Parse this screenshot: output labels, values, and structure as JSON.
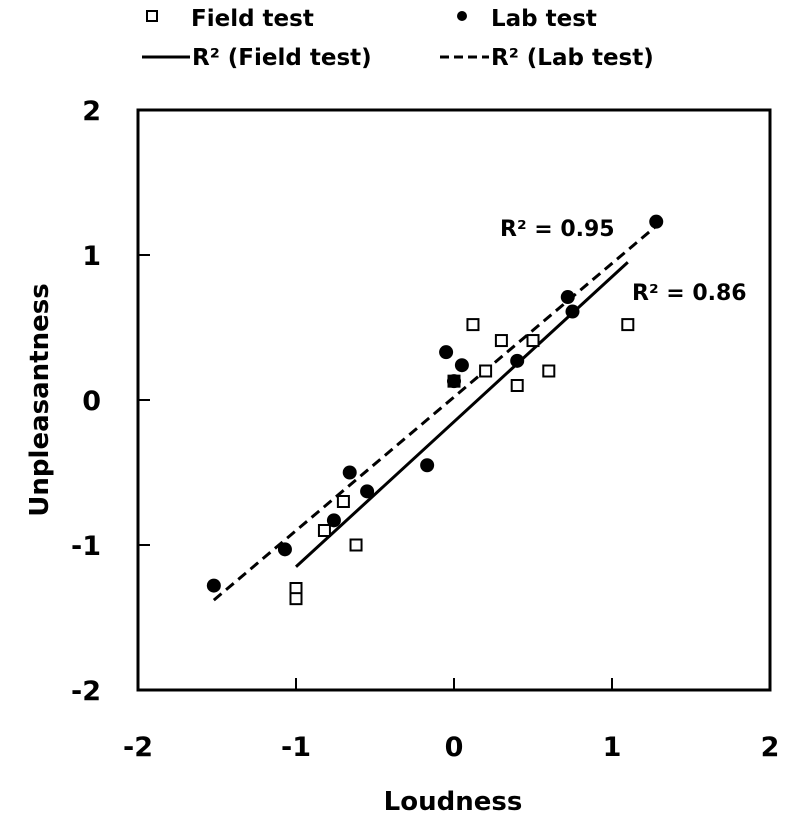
{
  "chart_data": {
    "type": "scatter",
    "title": "",
    "xlabel": "Loudness",
    "ylabel": "Unpleasantness",
    "xlim": [
      -2,
      2
    ],
    "ylim": [
      -2,
      2
    ],
    "x_ticks": [
      -2,
      -1,
      0,
      1,
      2
    ],
    "y_ticks": [
      -2,
      -1,
      0,
      1,
      2
    ],
    "grid": false,
    "legend_position": "top",
    "series": [
      {
        "name": "Field test",
        "marker": "square-open",
        "points": [
          {
            "x": -1.0,
            "y": -1.3
          },
          {
            "x": -1.0,
            "y": -1.37
          },
          {
            "x": -0.82,
            "y": -0.9
          },
          {
            "x": -0.7,
            "y": -0.7
          },
          {
            "x": -0.62,
            "y": -1.0
          },
          {
            "x": 0.0,
            "y": 0.13
          },
          {
            "x": 0.12,
            "y": 0.52
          },
          {
            "x": 0.2,
            "y": 0.2
          },
          {
            "x": 0.3,
            "y": 0.41
          },
          {
            "x": 0.4,
            "y": 0.1
          },
          {
            "x": 0.5,
            "y": 0.41
          },
          {
            "x": 0.6,
            "y": 0.2
          },
          {
            "x": 1.1,
            "y": 0.52
          }
        ]
      },
      {
        "name": "Lab test",
        "marker": "circle-filled",
        "points": [
          {
            "x": -1.52,
            "y": -1.28
          },
          {
            "x": -1.07,
            "y": -1.03
          },
          {
            "x": -0.76,
            "y": -0.83
          },
          {
            "x": -0.66,
            "y": -0.5
          },
          {
            "x": -0.55,
            "y": -0.63
          },
          {
            "x": -0.17,
            "y": -0.45
          },
          {
            "x": -0.05,
            "y": 0.33
          },
          {
            "x": 0.0,
            "y": 0.13
          },
          {
            "x": 0.05,
            "y": 0.24
          },
          {
            "x": 0.4,
            "y": 0.27
          },
          {
            "x": 0.72,
            "y": 0.71
          },
          {
            "x": 0.75,
            "y": 0.61
          },
          {
            "x": 1.28,
            "y": 1.23
          }
        ]
      }
    ],
    "trendlines": [
      {
        "name": "R² (Field test)",
        "style": "solid",
        "x": [
          -1.0,
          1.1
        ],
        "y": [
          -1.15,
          0.95
        ],
        "r2_label": "R² = 0.86"
      },
      {
        "name": "R² (Lab test)",
        "style": "dashed",
        "x": [
          -1.52,
          1.28
        ],
        "y": [
          -1.38,
          1.2
        ],
        "r2_label": "R² = 0.95"
      }
    ],
    "legend": [
      {
        "symbol": "square-open",
        "label": "Field test"
      },
      {
        "symbol": "circle-filled",
        "label": "Lab test"
      },
      {
        "symbol": "solid-line",
        "label": "R² (Field test)"
      },
      {
        "symbol": "dashed-line",
        "label": "R² (Lab test)"
      }
    ]
  }
}
